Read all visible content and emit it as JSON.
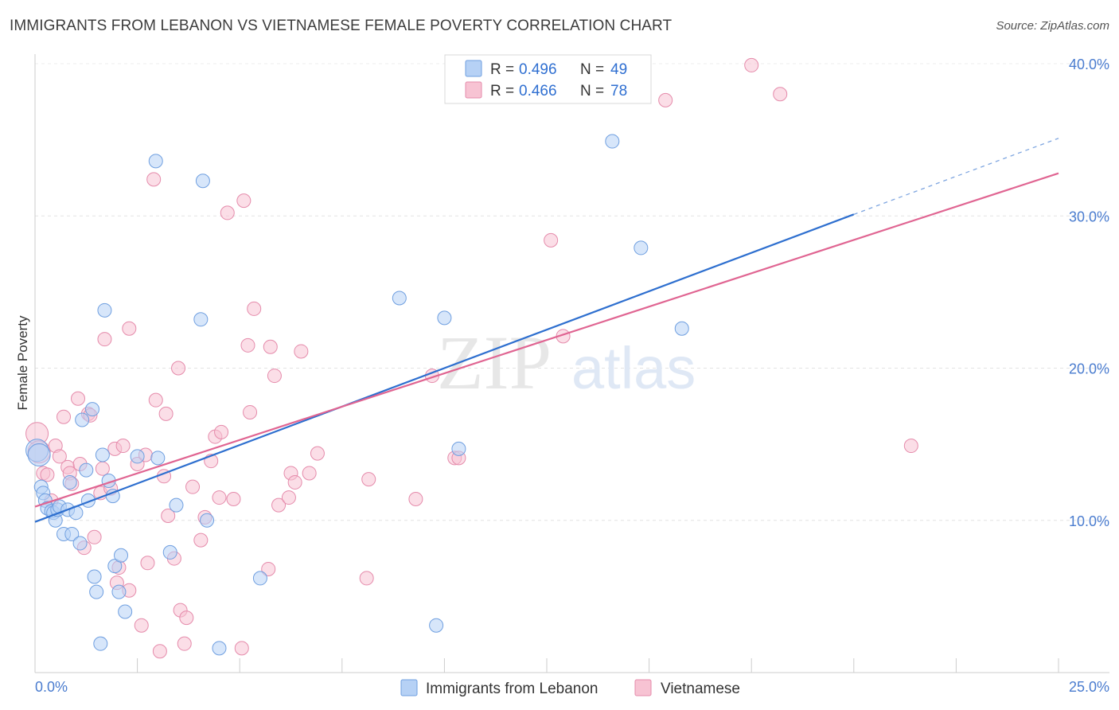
{
  "title": "IMMIGRANTS FROM LEBANON VS VIETNAMESE FEMALE POVERTY CORRELATION CHART",
  "source": "Source: ZipAtlas.com",
  "watermark": {
    "zip": "ZIP",
    "atlas": "atlas"
  },
  "colors": {
    "blue": "#2e6fcf",
    "blue_fill": "#b6d1f5",
    "pink": "#e06592",
    "pink_fill": "#f7c3d3",
    "tick": "#4a7ccf"
  },
  "legend": {
    "series": [
      {
        "r_label": "R =",
        "r_value": "0.496",
        "n_label": "N =",
        "n_value": "49"
      },
      {
        "r_label": "R =",
        "r_value": "0.466",
        "n_label": "N =",
        "n_value": "78"
      }
    ]
  },
  "bottom_legend": [
    "Immigrants from Lebanon",
    "Vietnamese"
  ],
  "chart_data": {
    "type": "scatter",
    "title": "IMMIGRANTS FROM LEBANON VS VIETNAMESE FEMALE POVERTY CORRELATION CHART",
    "xlabel": "",
    "ylabel": "Female Poverty",
    "xlim": [
      0,
      25
    ],
    "ylim": [
      0,
      40
    ],
    "x_tick_labels": [
      "0.0%",
      "25.0%"
    ],
    "y_ticks": [
      10,
      20,
      30,
      40
    ],
    "y_tick_labels": [
      "10.0%",
      "20.0%",
      "30.0%",
      "40.0%"
    ],
    "grid": true,
    "legend_position": "top-center",
    "series": [
      {
        "name": "Immigrants from Lebanon",
        "r": 0.496,
        "n": 49,
        "trend": {
          "x0": 0,
          "y0": 9.9,
          "x1": 20,
          "y1": 30.1,
          "dashed_to_x": 25,
          "dashed_to_y": 35.1
        },
        "points": [
          [
            0.05,
            14.6
          ],
          [
            0.1,
            14.3
          ],
          [
            0.15,
            12.2
          ],
          [
            0.2,
            11.8
          ],
          [
            0.25,
            11.3
          ],
          [
            0.3,
            10.8
          ],
          [
            0.4,
            10.6
          ],
          [
            0.45,
            10.5
          ],
          [
            0.5,
            10.0
          ],
          [
            0.55,
            10.7
          ],
          [
            0.6,
            10.9
          ],
          [
            0.7,
            9.1
          ],
          [
            0.8,
            10.7
          ],
          [
            0.85,
            12.5
          ],
          [
            0.9,
            9.1
          ],
          [
            1.0,
            10.5
          ],
          [
            1.1,
            8.5
          ],
          [
            1.15,
            16.6
          ],
          [
            1.25,
            13.3
          ],
          [
            1.3,
            11.3
          ],
          [
            1.4,
            17.3
          ],
          [
            1.45,
            6.3
          ],
          [
            1.5,
            5.3
          ],
          [
            1.6,
            1.9
          ],
          [
            1.65,
            14.3
          ],
          [
            1.7,
            23.8
          ],
          [
            1.8,
            12.6
          ],
          [
            1.9,
            11.6
          ],
          [
            1.95,
            7.0
          ],
          [
            2.05,
            5.3
          ],
          [
            2.1,
            7.7
          ],
          [
            2.2,
            4.0
          ],
          [
            2.5,
            14.2
          ],
          [
            2.95,
            33.6
          ],
          [
            3.0,
            14.1
          ],
          [
            3.3,
            7.9
          ],
          [
            3.45,
            11.0
          ],
          [
            4.05,
            23.2
          ],
          [
            4.1,
            32.3
          ],
          [
            4.2,
            10.0
          ],
          [
            4.5,
            1.6
          ],
          [
            5.5,
            6.2
          ],
          [
            8.9,
            24.6
          ],
          [
            9.8,
            3.1
          ],
          [
            10.0,
            23.3
          ],
          [
            10.35,
            14.7
          ],
          [
            14.1,
            34.9
          ],
          [
            14.8,
            27.9
          ],
          [
            15.8,
            22.6
          ]
        ]
      },
      {
        "name": "Vietnamese",
        "r": 0.466,
        "n": 78,
        "trend": {
          "x0": 0,
          "y0": 10.9,
          "x1": 25,
          "y1": 32.8
        },
        "points": [
          [
            0.05,
            15.7
          ],
          [
            0.1,
            14.5
          ],
          [
            0.2,
            13.1
          ],
          [
            0.3,
            13.0
          ],
          [
            0.4,
            11.3
          ],
          [
            0.5,
            14.9
          ],
          [
            0.6,
            14.2
          ],
          [
            0.7,
            16.8
          ],
          [
            0.8,
            13.5
          ],
          [
            0.85,
            13.1
          ],
          [
            0.9,
            12.4
          ],
          [
            1.05,
            18.0
          ],
          [
            1.1,
            13.7
          ],
          [
            1.2,
            8.2
          ],
          [
            1.3,
            17.0
          ],
          [
            1.35,
            16.9
          ],
          [
            1.45,
            8.9
          ],
          [
            1.6,
            11.8
          ],
          [
            1.65,
            13.4
          ],
          [
            1.7,
            21.9
          ],
          [
            1.85,
            12.1
          ],
          [
            1.95,
            14.7
          ],
          [
            2.0,
            5.9
          ],
          [
            2.05,
            6.9
          ],
          [
            2.15,
            14.9
          ],
          [
            2.3,
            5.4
          ],
          [
            2.3,
            22.6
          ],
          [
            2.5,
            13.7
          ],
          [
            2.6,
            3.1
          ],
          [
            2.7,
            14.3
          ],
          [
            2.75,
            7.2
          ],
          [
            2.9,
            32.4
          ],
          [
            2.95,
            17.9
          ],
          [
            3.05,
            1.4
          ],
          [
            3.15,
            12.9
          ],
          [
            3.2,
            17.0
          ],
          [
            3.25,
            10.3
          ],
          [
            3.4,
            7.5
          ],
          [
            3.5,
            20.0
          ],
          [
            3.55,
            4.1
          ],
          [
            3.65,
            1.9
          ],
          [
            3.7,
            3.6
          ],
          [
            3.85,
            12.2
          ],
          [
            4.05,
            8.7
          ],
          [
            4.15,
            10.2
          ],
          [
            4.3,
            13.9
          ],
          [
            4.4,
            15.5
          ],
          [
            4.5,
            11.5
          ],
          [
            4.55,
            15.8
          ],
          [
            4.7,
            30.2
          ],
          [
            4.85,
            11.4
          ],
          [
            5.05,
            1.6
          ],
          [
            5.1,
            31.0
          ],
          [
            5.2,
            21.5
          ],
          [
            5.25,
            17.1
          ],
          [
            5.35,
            23.9
          ],
          [
            5.7,
            6.8
          ],
          [
            5.75,
            21.4
          ],
          [
            5.85,
            19.5
          ],
          [
            5.95,
            11.0
          ],
          [
            6.2,
            11.5
          ],
          [
            6.25,
            13.1
          ],
          [
            6.35,
            12.5
          ],
          [
            6.5,
            21.1
          ],
          [
            6.7,
            13.1
          ],
          [
            6.9,
            14.4
          ],
          [
            8.1,
            6.2
          ],
          [
            8.15,
            12.7
          ],
          [
            9.3,
            11.4
          ],
          [
            9.7,
            19.5
          ],
          [
            10.25,
            14.1
          ],
          [
            10.35,
            14.1
          ],
          [
            12.6,
            28.4
          ],
          [
            12.9,
            22.1
          ],
          [
            15.4,
            37.6
          ],
          [
            17.5,
            39.9
          ],
          [
            18.2,
            38.0
          ],
          [
            21.4,
            14.9
          ]
        ]
      }
    ]
  }
}
